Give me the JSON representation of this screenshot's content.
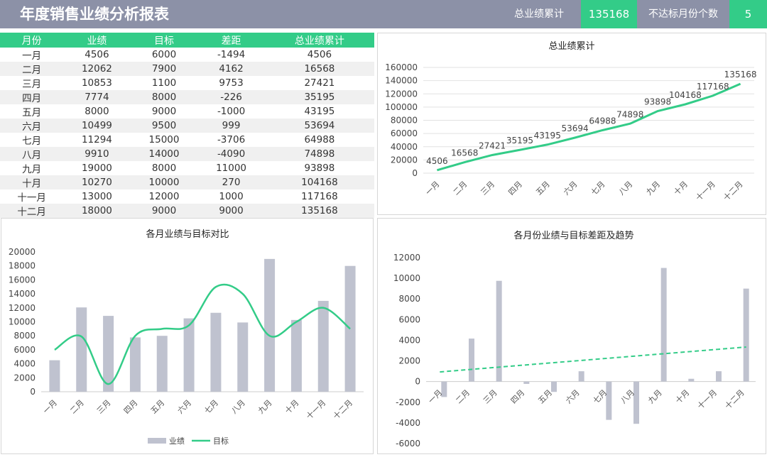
{
  "header": {
    "title": "年度销售业绩分析报表",
    "kpi1_label": "总业绩累计",
    "kpi1_value": "135168",
    "kpi2_label": "不达标月份个数",
    "kpi2_value": "5"
  },
  "colors": {
    "green": "#33cc88",
    "gray_bar": "#bfc2cf",
    "header_bg": "#8c91a7"
  },
  "table": {
    "columns": [
      "月份",
      "业绩",
      "目标",
      "差距",
      "总业绩累计"
    ],
    "rows": [
      [
        "一月",
        "4506",
        "6000",
        "-1494",
        "4506"
      ],
      [
        "二月",
        "12062",
        "7900",
        "4162",
        "16568"
      ],
      [
        "三月",
        "10853",
        "1100",
        "9753",
        "27421"
      ],
      [
        "四月",
        "7774",
        "8000",
        "-226",
        "35195"
      ],
      [
        "五月",
        "8000",
        "9000",
        "-1000",
        "43195"
      ],
      [
        "六月",
        "10499",
        "9500",
        "999",
        "53694"
      ],
      [
        "七月",
        "11294",
        "15000",
        "-3706",
        "64988"
      ],
      [
        "八月",
        "9910",
        "14000",
        "-4090",
        "74898"
      ],
      [
        "九月",
        "19000",
        "8000",
        "11000",
        "93898"
      ],
      [
        "十月",
        "10270",
        "10000",
        "270",
        "104168"
      ],
      [
        "十一月",
        "13000",
        "12000",
        "1000",
        "117168"
      ],
      [
        "十二月",
        "18000",
        "9000",
        "9000",
        "135168"
      ]
    ]
  },
  "chart_data": [
    {
      "type": "line",
      "title": "总业绩累计",
      "categories": [
        "一月",
        "二月",
        "三月",
        "四月",
        "五月",
        "六月",
        "七月",
        "八月",
        "九月",
        "十月",
        "十一月",
        "十二月"
      ],
      "values": [
        4506,
        16568,
        27421,
        35195,
        43195,
        53694,
        64988,
        74898,
        93898,
        104168,
        117168,
        135168
      ],
      "ylim": [
        0,
        160000
      ],
      "yticks": [
        0,
        20000,
        40000,
        60000,
        80000,
        100000,
        120000,
        140000,
        160000
      ],
      "data_labels": true,
      "grid": true,
      "color": "#33cc88"
    },
    {
      "type": "bar",
      "title": "各月业绩与目标对比",
      "categories": [
        "一月",
        "二月",
        "三月",
        "四月",
        "五月",
        "六月",
        "七月",
        "八月",
        "九月",
        "十月",
        "十一月",
        "十二月"
      ],
      "series": [
        {
          "name": "业绩",
          "kind": "bar",
          "color": "#bfc2cf",
          "values": [
            4506,
            12062,
            10853,
            7774,
            8000,
            10499,
            11294,
            9910,
            19000,
            10270,
            13000,
            18000
          ]
        },
        {
          "name": "目标",
          "kind": "smooth-line",
          "color": "#33cc88",
          "values": [
            6000,
            7900,
            1100,
            8000,
            9000,
            9500,
            15000,
            14000,
            8000,
            10000,
            12000,
            9000
          ]
        }
      ],
      "ylim": [
        0,
        20000
      ],
      "yticks": [
        0,
        2000,
        4000,
        6000,
        8000,
        10000,
        12000,
        14000,
        16000,
        18000,
        20000
      ],
      "legend": "bottom",
      "grid": false
    },
    {
      "type": "bar",
      "title": "各月份业绩与目标差距及趋势",
      "categories": [
        "一月",
        "二月",
        "三月",
        "四月",
        "五月",
        "六月",
        "七月",
        "八月",
        "九月",
        "十月",
        "十一月",
        "十二月"
      ],
      "values": [
        -1494,
        4162,
        9753,
        -226,
        -1000,
        999,
        -3706,
        -4090,
        11000,
        270,
        1000,
        9000
      ],
      "ylim": [
        -6000,
        12000
      ],
      "yticks": [
        -6000,
        -4000,
        -2000,
        0,
        2000,
        4000,
        6000,
        8000,
        10000,
        12000
      ],
      "trendline": "linear-dashed",
      "bar_color": "#bfc2cf",
      "trend_color": "#33cc88",
      "grid": false
    }
  ]
}
